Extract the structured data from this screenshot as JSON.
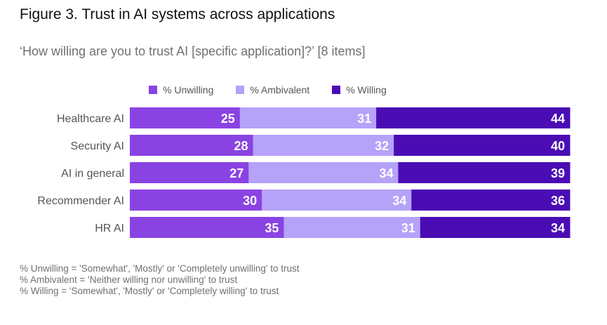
{
  "chart_data": {
    "type": "bar",
    "orientation": "horizontal",
    "stacked": true,
    "title": "Figure 3. Trust in AI systems across applications",
    "subtitle": "‘How willing are you to trust AI [specific application]?’ [8 items]",
    "categories": [
      "Healthcare AI",
      "Security AI",
      "AI in general",
      "Recommender AI",
      "HR AI"
    ],
    "series": [
      {
        "name": "% Unwilling",
        "color": "#8a43e3",
        "label_color": "#ffffff",
        "values": [
          25,
          28,
          27,
          30,
          35
        ]
      },
      {
        "name": "% Ambivalent",
        "color": "#b5a2f9",
        "label_color": "#ffffff",
        "values": [
          31,
          32,
          34,
          34,
          31
        ]
      },
      {
        "name": "% Willing",
        "color": "#4a0db4",
        "label_color": "#ffffff",
        "values": [
          44,
          40,
          39,
          36,
          34
        ]
      }
    ],
    "xlim": [
      0,
      100
    ],
    "grid": false,
    "legend_position": "top"
  },
  "notes": [
    "% Unwilling = 'Somewhat', 'Mostly' or 'Completely unwilling' to trust",
    "% Ambivalent = 'Neither willing nor unwilling' to trust",
    "% Willing = 'Somewhat', 'Mostly' or 'Completely willing' to trust"
  ]
}
